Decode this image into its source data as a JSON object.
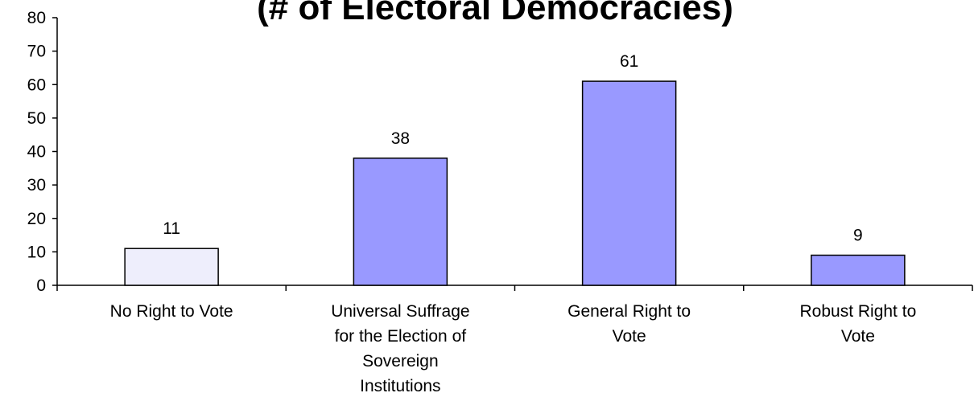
{
  "chart_data": {
    "type": "bar",
    "title": "(# of Electoral Democracies)",
    "categories": [
      "No Right to Vote",
      "Universal Suffrage for the Election of Sovereign Institutions",
      "General Right to Vote",
      "Robust Right to Vote"
    ],
    "category_label_lines": [
      [
        "No Right to Vote"
      ],
      [
        "Universal Suffrage",
        "for the Election of",
        "Sovereign",
        "Institutions"
      ],
      [
        "General Right to",
        "Vote"
      ],
      [
        "Robust Right to",
        "Vote"
      ]
    ],
    "values": [
      11,
      38,
      61,
      9
    ],
    "data_labels": [
      "11",
      "38",
      "61",
      "9"
    ],
    "bar_colors": [
      "#eeeefc",
      "#9999ff",
      "#9999ff",
      "#9999ff"
    ],
    "ylim": [
      0,
      80
    ],
    "yticks": [
      0,
      10,
      20,
      30,
      40,
      50,
      60,
      70,
      80
    ],
    "xlabel": "",
    "ylabel": "",
    "grid": false,
    "legend": "none"
  }
}
